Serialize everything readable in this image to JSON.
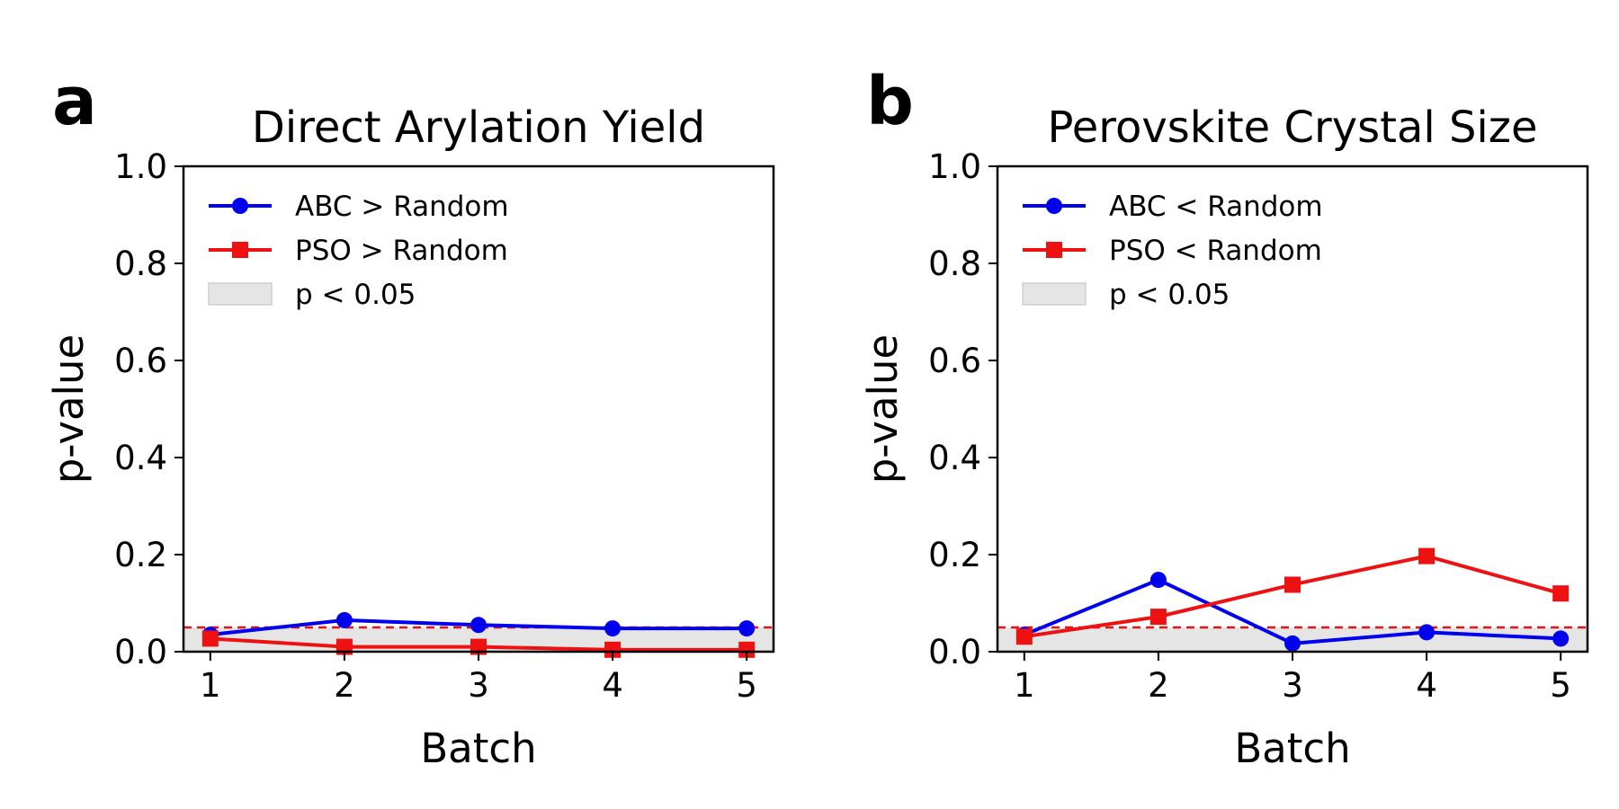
{
  "chart_data": [
    {
      "type": "line",
      "panel_label": "a",
      "title": "Direct Arylation Yield",
      "xlabel": "Batch",
      "ylabel": "p-value",
      "x": [
        1,
        2,
        3,
        4,
        5
      ],
      "xlim": [
        0.8,
        5.2
      ],
      "ylim": [
        0.0,
        1.0
      ],
      "xticks": [
        "1",
        "2",
        "3",
        "4",
        "5"
      ],
      "yticks": [
        "0.0",
        "0.2",
        "0.4",
        "0.6",
        "0.8",
        "1.0"
      ],
      "series": [
        {
          "name": "ABC > Random",
          "color": "#0000ee",
          "marker": "circle",
          "values": [
            0.035,
            0.065,
            0.055,
            0.048,
            0.048
          ]
        },
        {
          "name": "PSO > Random",
          "color": "#ee1111",
          "marker": "square",
          "values": [
            0.027,
            0.01,
            0.01,
            0.004,
            0.004
          ]
        }
      ],
      "threshold": {
        "value": 0.05,
        "color": "#ee1111",
        "style": "dashed"
      },
      "significance_band": {
        "label": "p < 0.05",
        "color": "#e5e5e5"
      },
      "legend_position": "upper-left",
      "grid": false
    },
    {
      "type": "line",
      "panel_label": "b",
      "title": "Perovskite Crystal Size",
      "xlabel": "Batch",
      "ylabel": "p-value",
      "x": [
        1,
        2,
        3,
        4,
        5
      ],
      "xlim": [
        0.8,
        5.2
      ],
      "ylim": [
        0.0,
        1.0
      ],
      "xticks": [
        "1",
        "2",
        "3",
        "4",
        "5"
      ],
      "yticks": [
        "0.0",
        "0.2",
        "0.4",
        "0.6",
        "0.8",
        "1.0"
      ],
      "series": [
        {
          "name": "ABC < Random",
          "color": "#0000ee",
          "marker": "circle",
          "values": [
            0.035,
            0.148,
            0.017,
            0.04,
            0.027
          ]
        },
        {
          "name": "PSO < Random",
          "color": "#ee1111",
          "marker": "square",
          "values": [
            0.031,
            0.072,
            0.138,
            0.197,
            0.12
          ]
        }
      ],
      "threshold": {
        "value": 0.05,
        "color": "#ee1111",
        "style": "dashed"
      },
      "significance_band": {
        "label": "p < 0.05",
        "color": "#e5e5e5"
      },
      "legend_position": "upper-left",
      "grid": false
    }
  ]
}
